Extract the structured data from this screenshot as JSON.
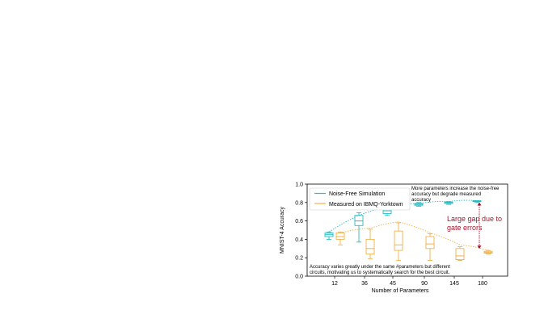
{
  "colors": {
    "noise_free": "#2bbcc4",
    "ibmq": "#f2b24a",
    "gap": "#a3182e",
    "axis": "#000000"
  },
  "chart_data": {
    "type": "box",
    "xlabel": "Number of Parameters",
    "ylabel": "MNIST-4 Accuracy",
    "ylim": [
      0.0,
      1.0
    ],
    "yticks": [
      "0.0",
      "0.2",
      "0.4",
      "0.6",
      "0.8",
      "1.0"
    ],
    "categories": [
      "12",
      "36",
      "45",
      "90",
      "145",
      "180"
    ],
    "legend_position": "upper-left",
    "series": [
      {
        "name": "Noise-Free Simulation",
        "color_key": "noise_free",
        "boxes": [
          {
            "category": "12",
            "min": 0.4,
            "q1": 0.43,
            "median": 0.45,
            "q3": 0.47,
            "max": 0.48
          },
          {
            "category": "36",
            "min": 0.37,
            "q1": 0.55,
            "median": 0.6,
            "q3": 0.66,
            "max": 0.69
          },
          {
            "category": "45",
            "min": 0.66,
            "q1": 0.68,
            "median": 0.71,
            "q3": 0.74,
            "max": 0.77
          },
          {
            "category": "90",
            "min": 0.76,
            "q1": 0.77,
            "median": 0.78,
            "q3": 0.79,
            "max": 0.8
          },
          {
            "category": "145",
            "min": 0.78,
            "q1": 0.79,
            "median": 0.8,
            "q3": 0.805,
            "max": 0.81
          },
          {
            "category": "180",
            "min": 0.8,
            "q1": 0.81,
            "median": 0.815,
            "q3": 0.82,
            "max": 0.82
          }
        ]
      },
      {
        "name": "Measured on IBMQ-Yorktown",
        "color_key": "ibmq",
        "boxes": [
          {
            "category": "12",
            "min": 0.34,
            "q1": 0.4,
            "median": 0.43,
            "q3": 0.47,
            "max": 0.48
          },
          {
            "category": "36",
            "min": 0.19,
            "q1": 0.24,
            "median": 0.3,
            "q3": 0.4,
            "max": 0.51
          },
          {
            "category": "45",
            "min": 0.17,
            "q1": 0.28,
            "median": 0.34,
            "q3": 0.49,
            "max": 0.58
          },
          {
            "category": "90",
            "min": 0.17,
            "q1": 0.3,
            "median": 0.35,
            "q3": 0.43,
            "max": 0.46
          },
          {
            "category": "145",
            "min": 0.17,
            "q1": 0.18,
            "median": 0.22,
            "q3": 0.3,
            "max": 0.32
          },
          {
            "category": "180",
            "min": 0.24,
            "q1": 0.25,
            "median": 0.26,
            "q3": 0.27,
            "max": 0.28
          }
        ]
      }
    ],
    "trend_lines": [
      {
        "series": "Noise-Free Simulation",
        "points": [
          [
            "12",
            0.48
          ],
          [
            "36",
            0.66
          ],
          [
            "45",
            0.75
          ],
          [
            "90",
            0.79
          ],
          [
            "145",
            0.81
          ],
          [
            "180",
            0.82
          ]
        ]
      },
      {
        "series": "Measured on IBMQ-Yorktown",
        "points": [
          [
            "12",
            0.47
          ],
          [
            "36",
            0.52
          ],
          [
            "45",
            0.59
          ],
          [
            "90",
            0.47
          ],
          [
            "145",
            0.34
          ],
          [
            "180",
            0.28
          ]
        ]
      }
    ],
    "annotations": {
      "top_right": [
        "More parameters increase the noise-free",
        "accuracy but degrade measured",
        "accuracy"
      ],
      "gap": [
        "Large gap due to",
        "gate errors"
      ],
      "bottom": [
        "Accuracy varies greatly under the same #parameters but different",
        "circuits, motivating us to systematically search for the best circuit."
      ]
    }
  }
}
